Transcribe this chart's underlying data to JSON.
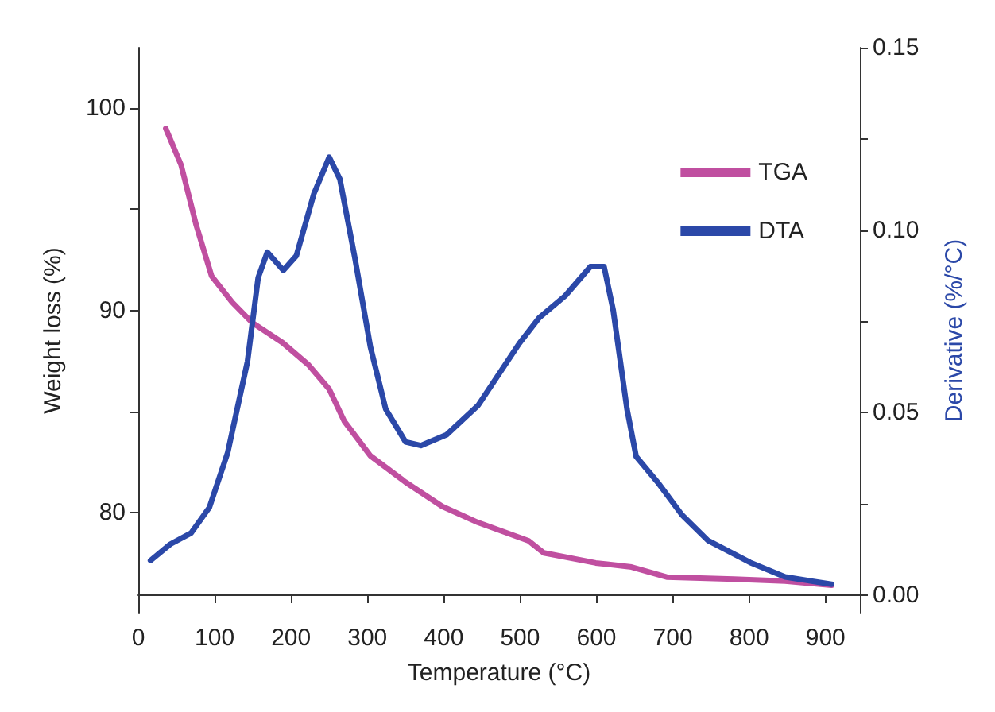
{
  "chart_data": {
    "type": "line",
    "xlabel": "Temperature (°C)",
    "ylabel": "Weight loss (%)",
    "y2label": "Derivative (%/°C)",
    "xlim": [
      0,
      945
    ],
    "xticks": [
      0,
      100,
      200,
      300,
      400,
      500,
      600,
      700,
      800,
      900
    ],
    "ylim": [
      75,
      103
    ],
    "yticks": [
      80,
      {
        "value": 85,
        "label": null
      },
      90,
      {
        "value": 95,
        "label": null
      },
      100
    ],
    "y2lim": [
      -0.005,
      0.15
    ],
    "y2ticks": [
      {
        "value": 0,
        "label": "0.00"
      },
      {
        "value": 0.025,
        "label": null
      },
      {
        "value": 0.05,
        "label": "0.05"
      },
      {
        "value": 0.075,
        "label": null
      },
      {
        "value": 0.1,
        "label": "0.10"
      },
      {
        "value": 0.125,
        "label": null
      },
      {
        "value": 0.15,
        "label": "0.15"
      }
    ],
    "grid": false,
    "legend": "top right",
    "marker": "none",
    "line_style": "solid",
    "series": [
      {
        "name": "TGA",
        "color": "#c04fa0",
        "x": [
          36,
          56,
          76,
          96,
          123,
          149,
          189,
          223,
          250,
          270,
          304,
          350,
          398,
          445,
          511,
          531,
          599,
          646,
          692,
          780,
          847,
          908
        ],
        "values": [
          99.0,
          97.2,
          94.2,
          91.7,
          90.4,
          89.4,
          88.4,
          87.3,
          86.1,
          84.5,
          82.8,
          81.5,
          80.3,
          79.5,
          78.6,
          78.0,
          77.5,
          77.3,
          76.8,
          76.7,
          76.6,
          76.4
        ]
      },
      {
        "name": "DTA",
        "color": "#2b48a8",
        "axis": "y2",
        "x": [
          16,
          42,
          69,
          93,
          117,
          143,
          157,
          169,
          190,
          207,
          230,
          250,
          264,
          284,
          304,
          324,
          350,
          370,
          404,
          445,
          499,
          525,
          559,
          592,
          610,
          622,
          640,
          652,
          680,
          712,
          746,
          801,
          847,
          908
        ],
        "values": [
          0.0095,
          0.014,
          0.017,
          0.024,
          0.039,
          0.064,
          0.087,
          0.094,
          0.089,
          0.093,
          0.11,
          0.12,
          0.114,
          0.092,
          0.068,
          0.051,
          0.042,
          0.041,
          0.044,
          0.052,
          0.069,
          0.076,
          0.082,
          0.09,
          0.09,
          0.078,
          0.051,
          0.038,
          0.031,
          0.022,
          0.015,
          0.009,
          0.005,
          0.003
        ]
      }
    ]
  }
}
